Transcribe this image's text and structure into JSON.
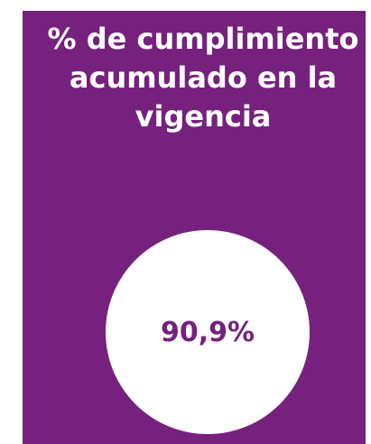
{
  "card": {
    "title": "% de cumplimiento acumulado en la vigencia",
    "value": "90,9%"
  }
}
